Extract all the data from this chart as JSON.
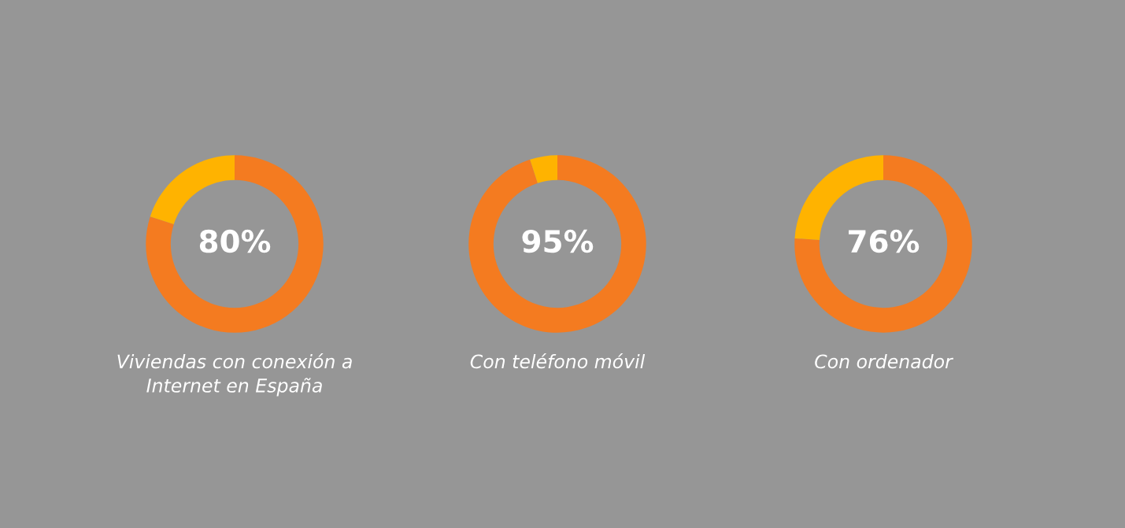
{
  "chart_data": [
    {
      "type": "donut",
      "title": "Viviendas con conexión a Internet en España",
      "categories": [
        null,
        null
      ],
      "values": [
        80,
        20
      ],
      "colors": [
        "#f47b20",
        "#ffb300"
      ],
      "annotations": [
        "80%"
      ]
    },
    {
      "type": "donut",
      "title": "Con teléfono móvil",
      "categories": [
        null,
        null
      ],
      "values": [
        95,
        5
      ],
      "colors": [
        "#f47b20",
        "#ffb300"
      ],
      "annotations": [
        "95%"
      ]
    },
    {
      "type": "donut",
      "title": "Con ordenador",
      "categories": [
        null,
        null
      ],
      "values": [
        76,
        24
      ],
      "colors": [
        "#f47b20",
        "#ffb300"
      ],
      "annotations": [
        "76%"
      ]
    }
  ]
}
